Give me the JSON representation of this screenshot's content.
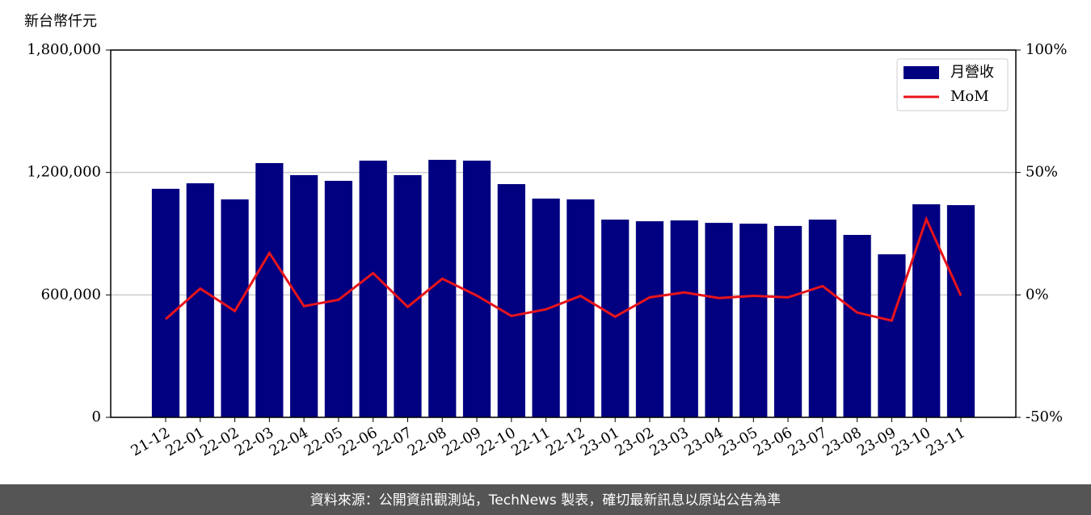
{
  "chart_data": {
    "type": "bar_line",
    "ylabel": "新台幣仟元",
    "categories": [
      "21-12",
      "22-01",
      "22-02",
      "22-03",
      "22-04",
      "22-05",
      "22-06",
      "22-07",
      "22-08",
      "22-09",
      "22-10",
      "22-11",
      "22-12",
      "23-01",
      "23-02",
      "23-03",
      "23-04",
      "23-05",
      "23-06",
      "23-07",
      "23-08",
      "23-09",
      "23-10",
      "23-11"
    ],
    "series": [
      {
        "name": "月營收",
        "color": "#000080",
        "type": "bar",
        "values": [
          1120000,
          1147000,
          1068000,
          1246000,
          1187000,
          1159000,
          1258000,
          1187000,
          1262000,
          1258000,
          1143000,
          1072000,
          1068000,
          969000,
          961000,
          965000,
          953000,
          949000,
          938000,
          969000,
          894000,
          799000,
          1044000,
          1040000
        ]
      },
      {
        "name": "MoM",
        "color": "#e8141c",
        "type": "line",
        "axis": "y2",
        "values": [
          -9.9,
          2.6,
          -6.6,
          17.1,
          -4.6,
          -2.0,
          8.9,
          -4.9,
          6.6,
          -0.3,
          -8.6,
          -5.9,
          -0.4,
          -8.9,
          -1.0,
          1.0,
          -1.3,
          -0.4,
          -1.0,
          3.6,
          -7.2,
          -10.5,
          30.9,
          -0.3
        ]
      }
    ],
    "ylim": [
      0,
      1800000
    ],
    "yticks": [
      0,
      {
        "value": 600000,
        "label": "600,000"
      },
      {
        "value": 1200000,
        "label": "1,200,000"
      },
      {
        "value": 1800000,
        "label": "1,800,000"
      }
    ],
    "y2lim": [
      -50,
      100
    ],
    "y2ticks": [
      {
        "value": -50,
        "label": "-50%"
      },
      {
        "value": 0,
        "label": "0%"
      },
      {
        "value": 50,
        "label": "50%"
      },
      {
        "value": 100,
        "label": "100%"
      }
    ],
    "grid": true,
    "legend": "upper right"
  },
  "footer": "資料來源：公開資訊觀測站，TechNews 製表，確切最新訊息以原站公告為準"
}
